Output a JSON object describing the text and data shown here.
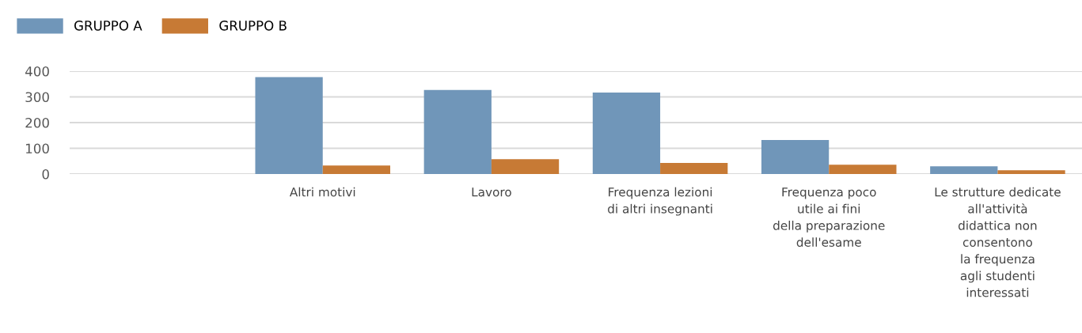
{
  "chart_data": {
    "type": "bar",
    "categories": [
      null,
      "Altri motivi",
      "Lavoro",
      "Frequenza lezioni\ndi altri insegnanti",
      "Frequenza poco\nutile ai fini\ndella preparazione\ndell'esame",
      "Le strutture dedicate\nall'attività\ndidattica non\nconsentono\nla frequenza\nagli studenti\ninteressati"
    ],
    "series": [
      {
        "name": "GRUPPO A",
        "color": "#7096b9",
        "values": [
          null,
          377,
          327,
          317,
          132,
          30
        ]
      },
      {
        "name": "GRUPPO B",
        "color": "#c77a35",
        "values": [
          null,
          33,
          58,
          43,
          36,
          15
        ]
      }
    ],
    "ylim": [
      0,
      400
    ],
    "yticks": [
      0,
      100,
      200,
      300,
      400
    ],
    "grid": "y",
    "legend": "top left"
  }
}
